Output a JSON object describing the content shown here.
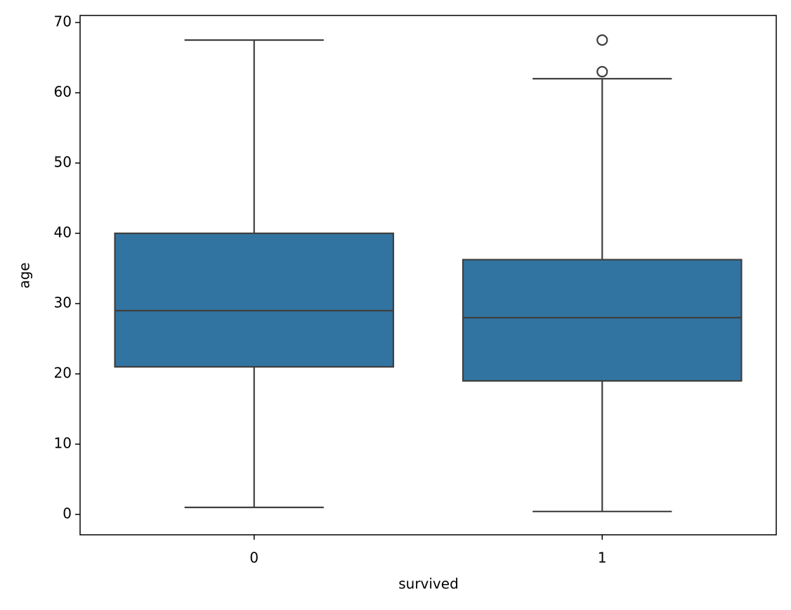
{
  "chart_data": {
    "type": "box",
    "x_label": "survived",
    "y_label": "age",
    "categories": [
      "0",
      "1"
    ],
    "boxes": [
      {
        "whislo": 1,
        "q1": 21,
        "med": 29,
        "q3": 40,
        "whishi": 67.5,
        "fliers": []
      },
      {
        "whislo": 0.42,
        "q1": 19,
        "med": 28,
        "q3": 36.25,
        "whishi": 62,
        "fliers": [
          63,
          67.5
        ]
      }
    ],
    "color": "#3274a1",
    "line_color": "#3f3f3f",
    "ylim": [
      -2.9,
      71
    ],
    "yticks": [
      0,
      10,
      20,
      30,
      40,
      50,
      60,
      70
    ],
    "grid": false
  }
}
